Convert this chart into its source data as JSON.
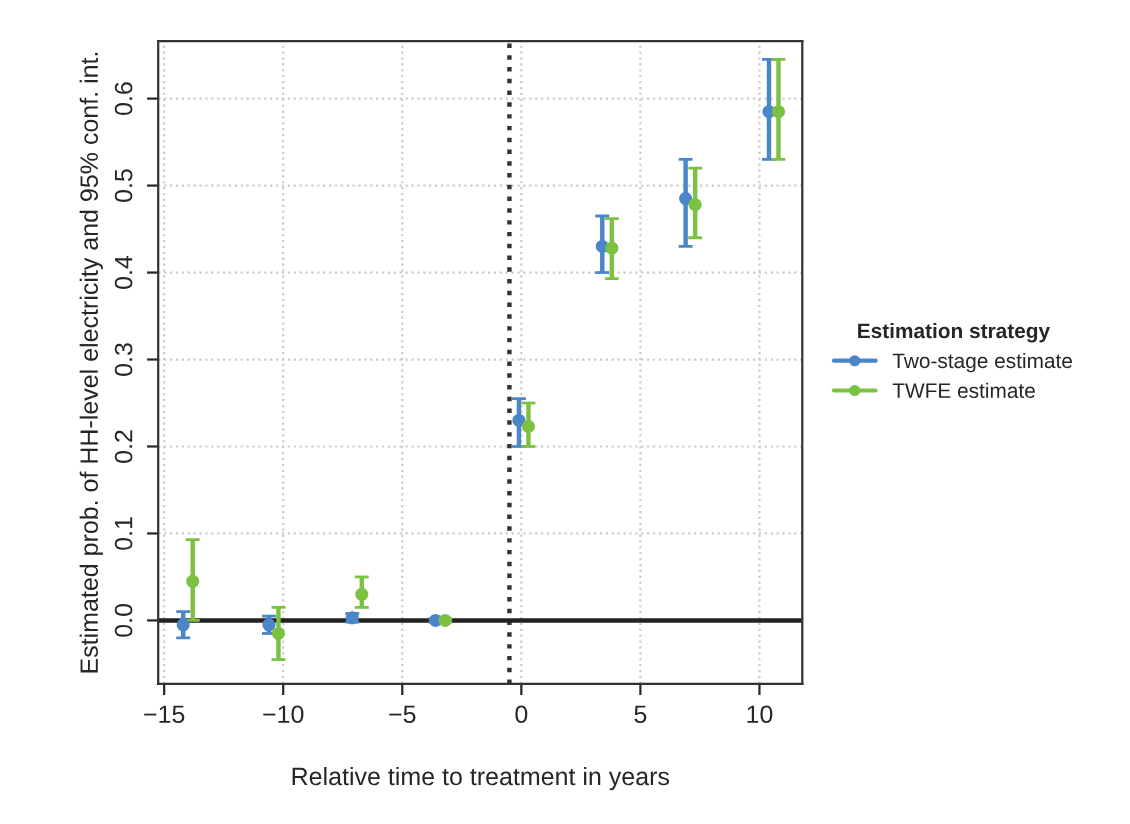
{
  "chart_data": {
    "type": "scatter",
    "xlabel": "Relative time to treatment in years",
    "ylabel": "Estimated prob. of HH-level electricity and 95% conf. int.",
    "legend_title": "Estimation strategy",
    "series": [
      {
        "name": "Two-stage estimate",
        "color": "#4a86c8",
        "x": [
          -14.2,
          -10.6,
          -7.1,
          -3.6,
          -0.1,
          3.4,
          6.9,
          10.4
        ],
        "values": [
          -0.005,
          -0.005,
          0.003,
          0.0,
          0.23,
          0.43,
          0.485,
          0.585
        ],
        "errors": [
          [
            -0.02,
            0.01
          ],
          [
            -0.015,
            0.005
          ],
          [
            -0.002,
            0.008
          ],
          [
            -0.002,
            0.002
          ],
          [
            0.2,
            0.255
          ],
          [
            0.4,
            0.465
          ],
          [
            0.43,
            0.53
          ],
          [
            0.53,
            0.645
          ]
        ]
      },
      {
        "name": "TWFE estimate",
        "color": "#7cc242",
        "x": [
          -13.8,
          -10.2,
          -6.7,
          -3.2,
          0.3,
          3.8,
          7.3,
          10.8
        ],
        "values": [
          0.045,
          -0.015,
          0.03,
          0.0,
          0.223,
          0.428,
          0.478,
          0.585
        ],
        "errors": [
          [
            0.0,
            0.093
          ],
          [
            -0.045,
            0.015
          ],
          [
            0.015,
            0.05
          ],
          [
            -0.002,
            0.002
          ],
          [
            0.2,
            0.25
          ],
          [
            0.393,
            0.462
          ],
          [
            0.44,
            0.52
          ],
          [
            0.53,
            0.645
          ]
        ]
      }
    ],
    "xlim": [
      -15.25,
      11.8
    ],
    "ylim": [
      -0.073,
      0.666
    ],
    "xticks": [
      {
        "value": -15,
        "label": "−15"
      },
      {
        "value": -10,
        "label": "−10"
      },
      {
        "value": -5,
        "label": "−5"
      },
      0,
      5,
      10
    ],
    "yticks": [
      {
        "value": 0,
        "label": "0.0"
      },
      0.1,
      0.2,
      0.3,
      0.4,
      0.5,
      0.6
    ],
    "ref_lines": [
      {
        "axis": "x",
        "value": -0.5,
        "color": "#333333",
        "line_style": "dotted"
      },
      {
        "axis": "y",
        "value": 0,
        "color": "#222222",
        "line_style": "solid"
      }
    ],
    "grid": true,
    "legend": "right",
    "marker": "circle"
  }
}
